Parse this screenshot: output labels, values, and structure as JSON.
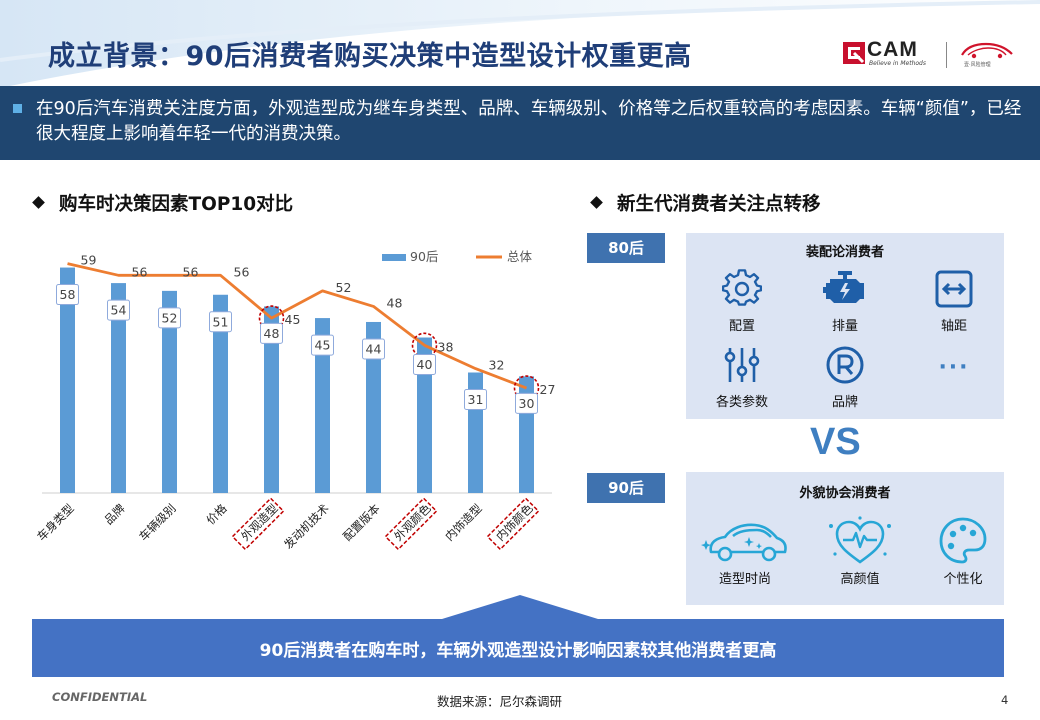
{
  "header": {
    "title": "成立背景：90后消费者购买决策中造型设计权重更高",
    "logo_cam_text": "CAM",
    "logo_cam_tagline": "Believe in Methods",
    "logo_car_tagline": "壹·风险管理"
  },
  "intro": {
    "text": "在90后汽车消费关注度方面，外观造型成为继车身类型、品牌、车辆级别、价格等之后权重较高的考虑因素。车辆“颜值”，已经很大程度上影响着年轻一代的消费决策。"
  },
  "left_section": {
    "heading": "购车时决策因素TOP10对比"
  },
  "chart_data": {
    "type": "bar",
    "title": "",
    "xlabel": "",
    "ylabel": "",
    "ylim": [
      0,
      62
    ],
    "categories": [
      "车身类型",
      "品牌",
      "车辆级别",
      "价格",
      "外观造型",
      "发动机技术",
      "配置版本",
      "外观颜色",
      "内饰造型",
      "内饰颜色"
    ],
    "series": [
      {
        "name": "90后",
        "kind": "bar",
        "color": "#5b9bd5",
        "values": [
          58,
          54,
          52,
          51,
          48,
          45,
          44,
          40,
          31,
          30
        ]
      },
      {
        "name": "总体",
        "kind": "line",
        "color": "#ed7d31",
        "values": [
          59,
          56,
          56,
          56,
          45,
          52,
          48,
          38,
          32,
          27
        ]
      }
    ],
    "highlighted_categories": [
      "外观造型",
      "外观颜色",
      "内饰颜色"
    ],
    "legend_position": "top-right",
    "grid": false
  },
  "right_section": {
    "heading": "新生代消费者关注点转移",
    "gen80": {
      "tag": "80后",
      "panel_title": "装配论消费者",
      "items": [
        {
          "label": "配置",
          "icon": "gear-icon"
        },
        {
          "label": "排量",
          "icon": "engine-icon"
        },
        {
          "label": "轴距",
          "icon": "wheelbase-icon"
        },
        {
          "label": "各类参数",
          "icon": "sliders-icon"
        },
        {
          "label": "品牌",
          "icon": "registered-icon"
        },
        {
          "label": "",
          "icon": "ellipsis-icon"
        }
      ],
      "ellipsis": "···"
    },
    "vs": "VS",
    "gen90": {
      "tag": "90后",
      "panel_title": "外貌协会消费者",
      "items": [
        {
          "label": "造型时尚",
          "icon": "sparkle-car-icon"
        },
        {
          "label": "高颜值",
          "icon": "heartbeat-icon"
        },
        {
          "label": "个性化",
          "icon": "palette-icon"
        }
      ]
    }
  },
  "banner": {
    "text": "90后消费者在购车时，车辆外观造型设计影响因素较其他消费者更高"
  },
  "footer": {
    "confidential": "CONFIDENTIAL",
    "source": "数据来源：尼尔森调研",
    "page": "4"
  },
  "colors": {
    "title": "#1f3e78",
    "intro_band": "#1f4670",
    "bar": "#5b9bd5",
    "line": "#ed7d31",
    "highlight": "#c00000",
    "tag": "#3f72af",
    "panel": "#dce4f3",
    "icon": "#1f5fa8",
    "vs": "#3f7fc1",
    "banner": "#4472c4"
  }
}
